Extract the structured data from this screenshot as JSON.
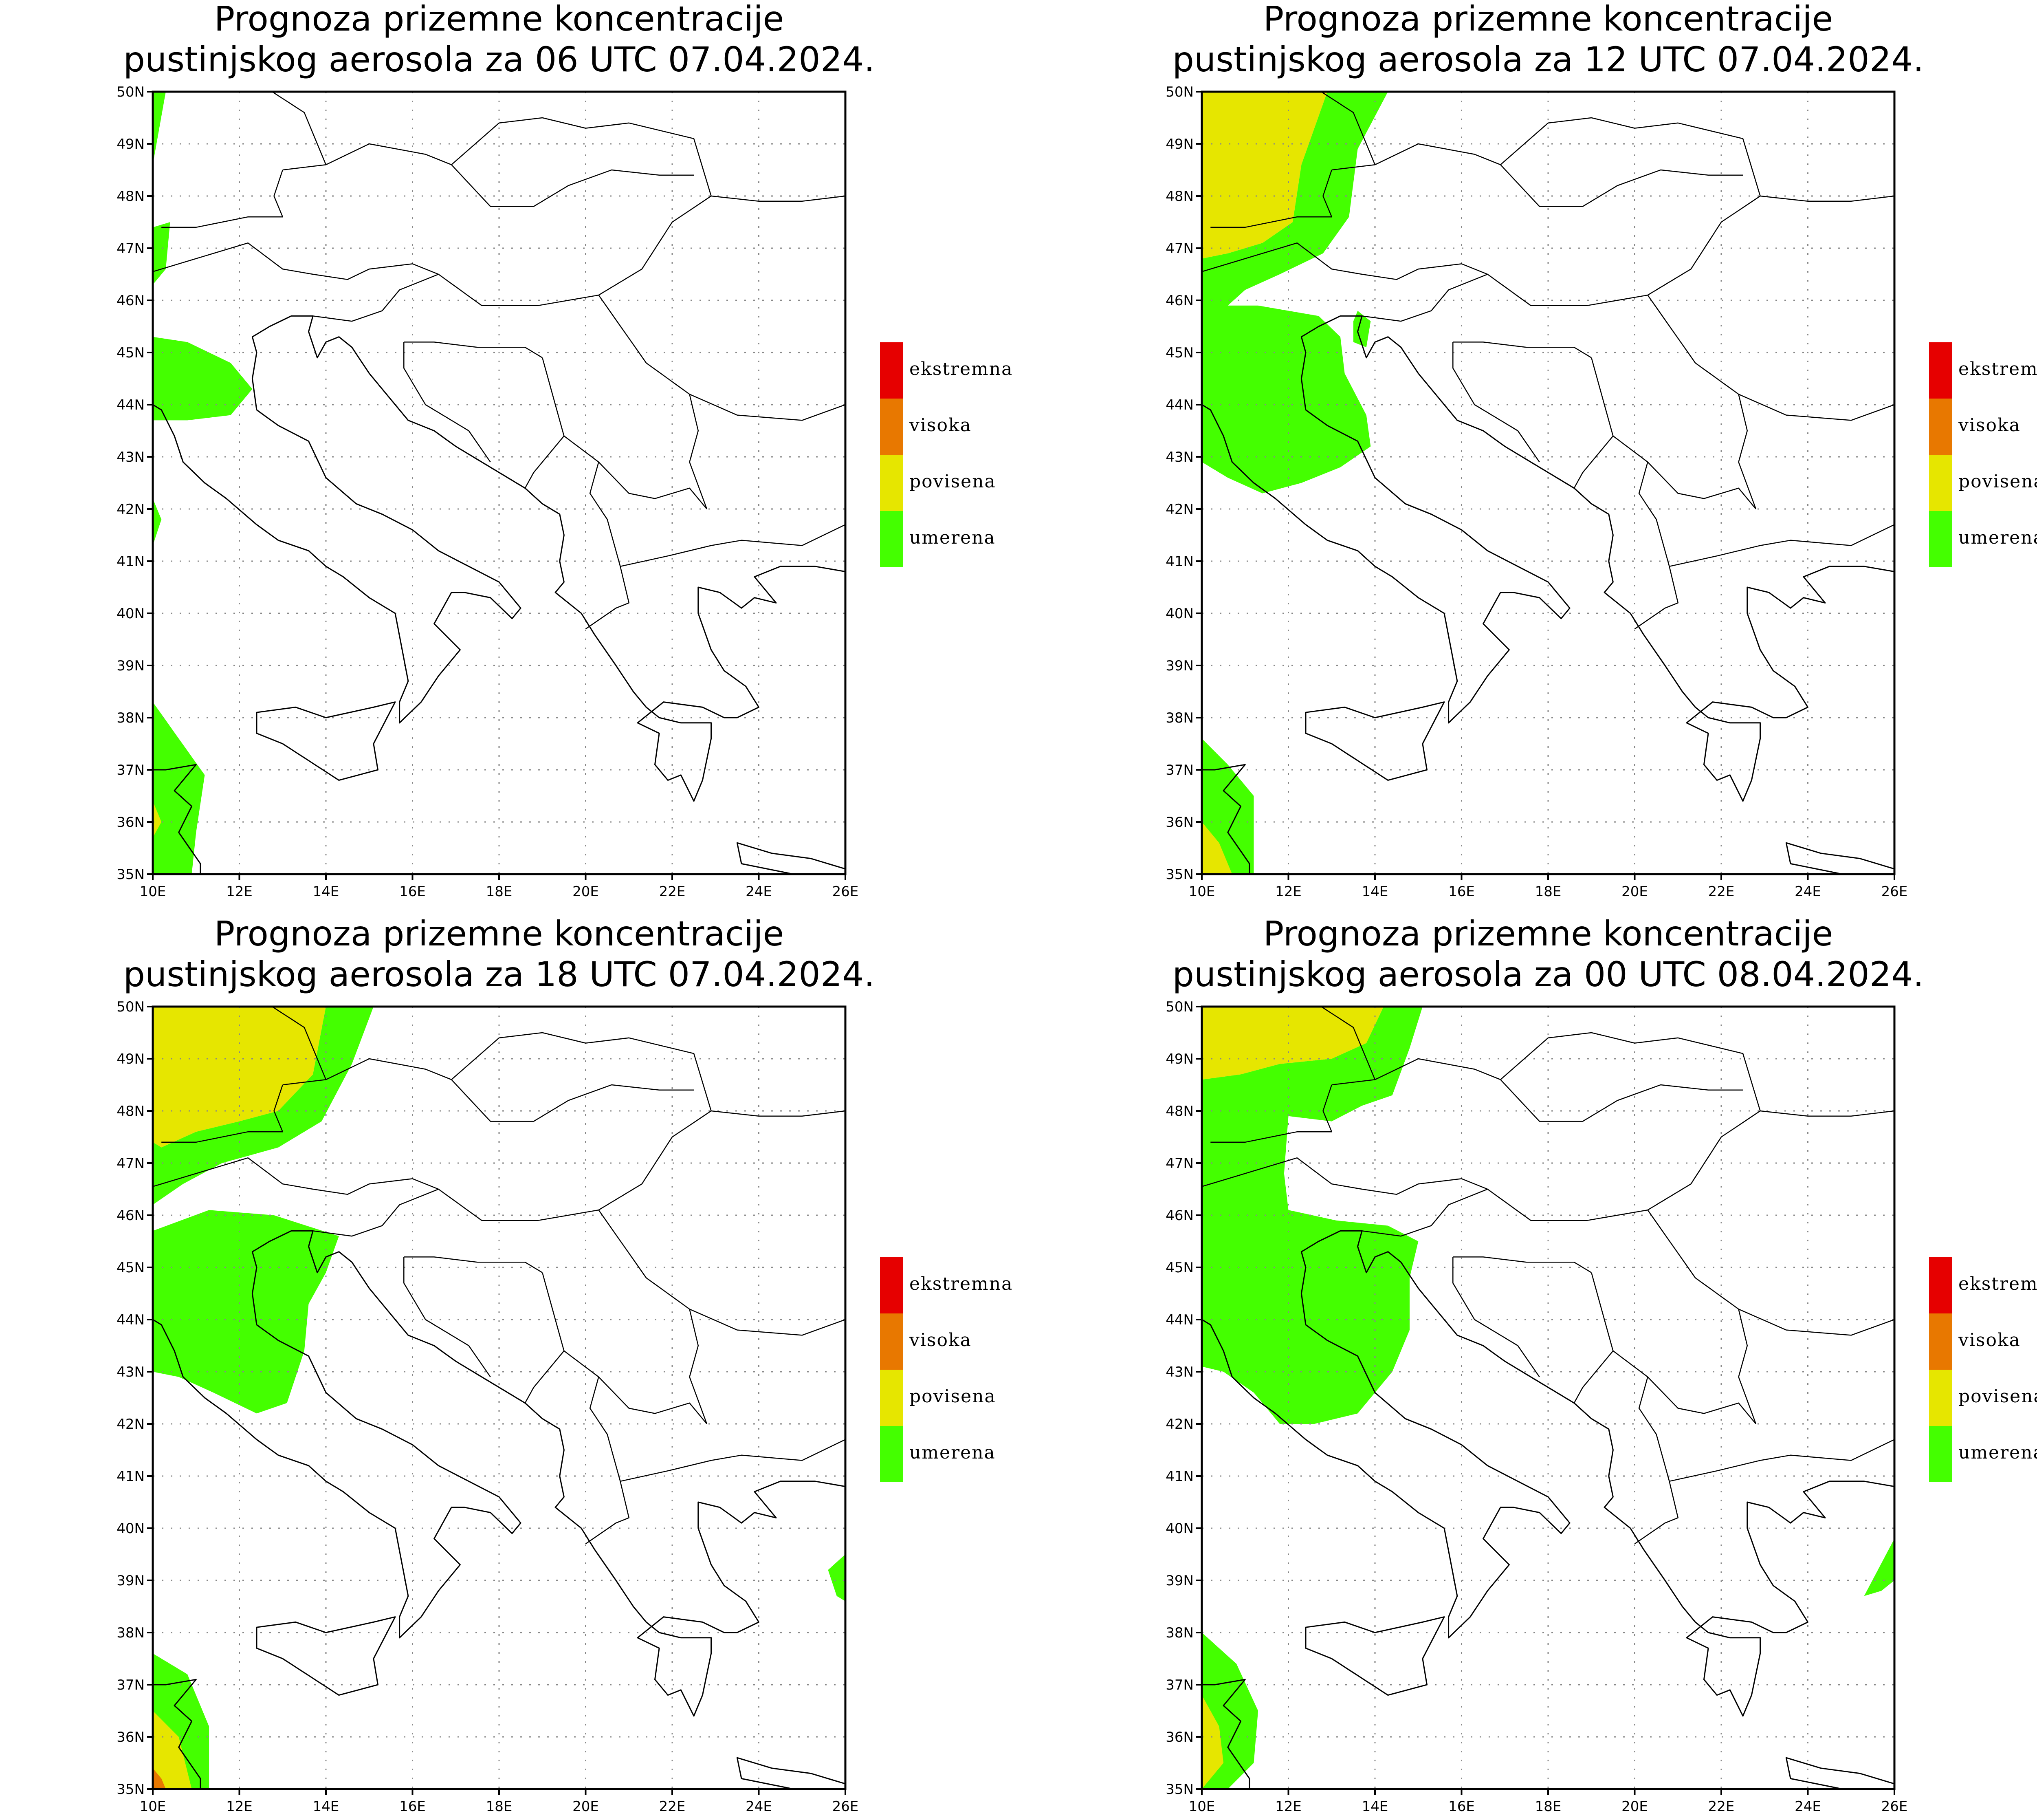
{
  "legend": {
    "colors": {
      "ekstremna": "#e60000",
      "visoka": "#e87800",
      "povisena": "#e6e600",
      "umerena": "#44ff00"
    },
    "labels": [
      "ekstremna",
      "visoka",
      "povisena",
      "umerena"
    ]
  },
  "axes": {
    "lat_labels": [
      "50N",
      "49N",
      "48N",
      "47N",
      "46N",
      "45N",
      "44N",
      "43N",
      "42N",
      "41N",
      "40N",
      "39N",
      "38N",
      "37N",
      "36N",
      "35N"
    ],
    "lon_labels": [
      "10E",
      "12E",
      "14E",
      "16E",
      "18E",
      "20E",
      "22E",
      "24E",
      "26E"
    ],
    "lat_range": [
      35,
      50
    ],
    "lon_range": [
      10,
      26
    ]
  },
  "panels": [
    {
      "title1": "Prognoza prizemne koncentracije",
      "title2": "pustinjskog aerosola za 06 UTC 07.04.2024."
    },
    {
      "title1": "Prognoza prizemne koncentracije",
      "title2": "pustinjskog aerosola za 12 UTC 07.04.2024."
    },
    {
      "title1": "Prognoza prizemne koncentracije",
      "title2": "pustinjskog aerosola za 18 UTC 07.04.2024."
    },
    {
      "title1": "Prognoza prizemne koncentracije",
      "title2": "pustinjskog aerosola za 00 UTC 08.04.2024."
    }
  ]
}
